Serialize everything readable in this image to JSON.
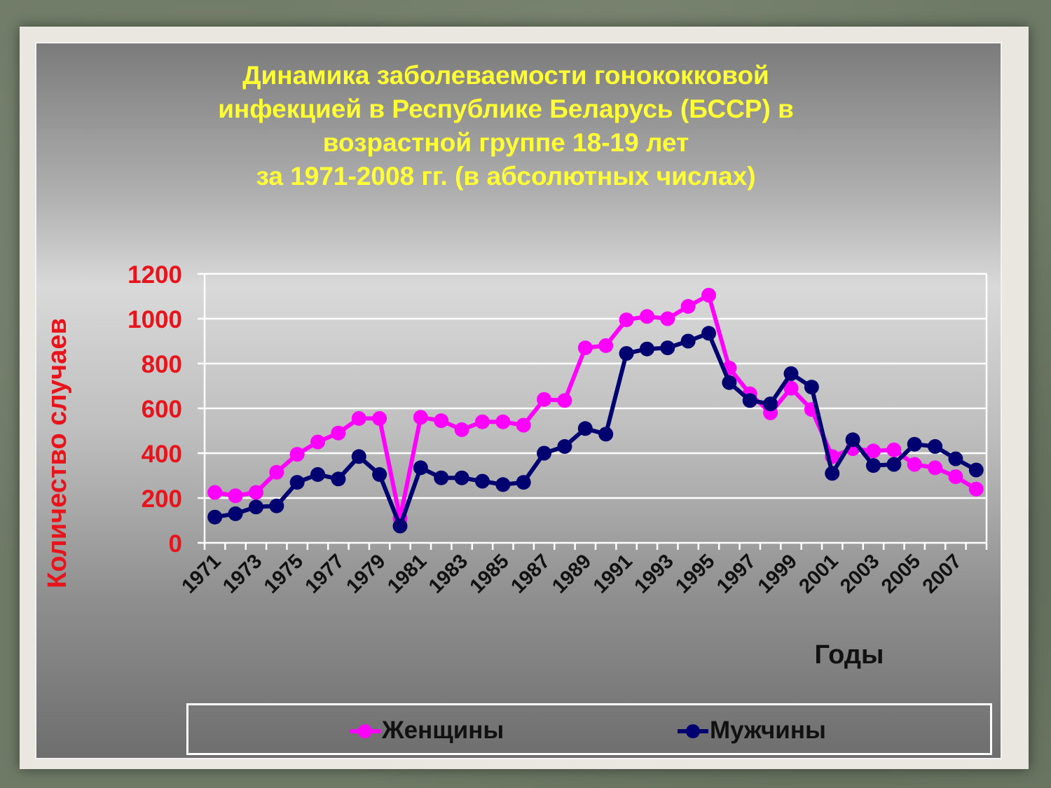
{
  "title_lines": [
    "Динамика заболеваемости гонококковой",
    "инфекцией в Республике Беларусь (БССР) в",
    "возрастной группе 18-19 лет",
    "за 1971-2008 гг. (в абсолютных числах)"
  ],
  "colors": {
    "title": "#ffff33",
    "axis_labels": "#e8141c",
    "women": "#ff00ff",
    "men": "#000070",
    "gridline": "#ffffff"
  },
  "chart_data": {
    "type": "line",
    "title": "Динамика заболеваемости гонококковой инфекцией в Республике Беларусь (БССР) в возрастной группе 18-19 лет за 1971-2008 гг. (в абсолютных числах)",
    "xlabel": "Годы",
    "ylabel": "Количество случаев",
    "ylim": [
      0,
      1200
    ],
    "yticks": [
      0,
      200,
      400,
      600,
      800,
      1000,
      1200
    ],
    "x": [
      1971,
      1972,
      1973,
      1974,
      1975,
      1976,
      1977,
      1978,
      1979,
      1980,
      1981,
      1982,
      1983,
      1984,
      1985,
      1986,
      1987,
      1988,
      1989,
      1990,
      1991,
      1992,
      1993,
      1994,
      1995,
      1996,
      1997,
      1998,
      1999,
      2000,
      2001,
      2002,
      2003,
      2004,
      2005,
      2006,
      2007,
      2008
    ],
    "xtick_labels": [
      "1971",
      "1973",
      "1975",
      "1977",
      "1979",
      "1981",
      "1983",
      "1985",
      "1987",
      "1989",
      "1991",
      "1993",
      "1995",
      "1997",
      "1999",
      "2001",
      "2003",
      "2005",
      "2007"
    ],
    "grid": "horizontal",
    "legend": "bottom",
    "series": [
      {
        "name": "Женщины",
        "color": "#ff00ff",
        "values": [
          225,
          210,
          225,
          315,
          395,
          450,
          490,
          555,
          555,
          110,
          560,
          545,
          505,
          540,
          540,
          525,
          640,
          635,
          870,
          880,
          995,
          1010,
          1000,
          1055,
          1105,
          780,
          665,
          580,
          690,
          595,
          385,
          420,
          410,
          415,
          350,
          335,
          295,
          240
        ]
      },
      {
        "name": "Мужчины",
        "color": "#000070",
        "values": [
          115,
          130,
          160,
          165,
          270,
          305,
          285,
          385,
          305,
          75,
          335,
          290,
          290,
          275,
          260,
          270,
          400,
          430,
          510,
          485,
          845,
          865,
          870,
          900,
          935,
          715,
          635,
          620,
          755,
          695,
          310,
          460,
          345,
          350,
          440,
          430,
          375,
          325
        ]
      }
    ]
  }
}
